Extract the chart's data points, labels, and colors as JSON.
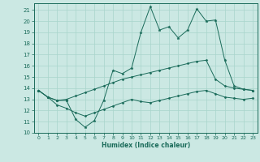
{
  "xlabel": "Humidex (Indice chaleur)",
  "bg_color": "#cbe8e3",
  "line_color": "#1a6b5a",
  "grid_color": "#a8d5cc",
  "xlim": [
    -0.5,
    23.5
  ],
  "ylim": [
    10,
    21.6
  ],
  "yticks": [
    10,
    11,
    12,
    13,
    14,
    15,
    16,
    17,
    18,
    19,
    20,
    21
  ],
  "xticks": [
    0,
    1,
    2,
    3,
    4,
    5,
    6,
    7,
    8,
    9,
    10,
    11,
    12,
    13,
    14,
    15,
    16,
    17,
    18,
    19,
    20,
    21,
    22,
    23
  ],
  "line1_x": [
    0,
    1,
    2,
    3,
    4,
    5,
    6,
    7,
    8,
    9,
    10,
    11,
    12,
    13,
    14,
    15,
    16,
    17,
    18,
    19,
    20,
    21,
    22,
    23
  ],
  "line1_y": [
    13.8,
    13.2,
    12.9,
    12.9,
    11.2,
    10.5,
    11.1,
    12.9,
    15.6,
    15.3,
    15.8,
    19.0,
    21.3,
    19.2,
    19.5,
    18.5,
    19.2,
    21.1,
    20.0,
    20.1,
    16.5,
    14.2,
    13.9,
    13.8
  ],
  "line2_x": [
    0,
    1,
    2,
    3,
    4,
    5,
    6,
    7,
    8,
    9,
    10,
    11,
    12,
    13,
    14,
    15,
    16,
    17,
    18,
    19,
    20,
    21,
    22,
    23
  ],
  "line2_y": [
    13.8,
    13.2,
    12.9,
    13.0,
    13.3,
    13.6,
    13.9,
    14.2,
    14.5,
    14.8,
    15.0,
    15.2,
    15.4,
    15.6,
    15.8,
    16.0,
    16.2,
    16.4,
    16.5,
    14.8,
    14.2,
    14.0,
    13.9,
    13.8
  ],
  "line3_x": [
    0,
    1,
    2,
    3,
    4,
    5,
    6,
    7,
    8,
    9,
    10,
    11,
    12,
    13,
    14,
    15,
    16,
    17,
    18,
    19,
    20,
    21,
    22,
    23
  ],
  "line3_y": [
    13.8,
    13.2,
    12.5,
    12.2,
    11.8,
    11.5,
    11.8,
    12.1,
    12.4,
    12.7,
    13.0,
    12.8,
    12.7,
    12.9,
    13.1,
    13.3,
    13.5,
    13.7,
    13.8,
    13.5,
    13.2,
    13.1,
    13.0,
    13.1
  ]
}
